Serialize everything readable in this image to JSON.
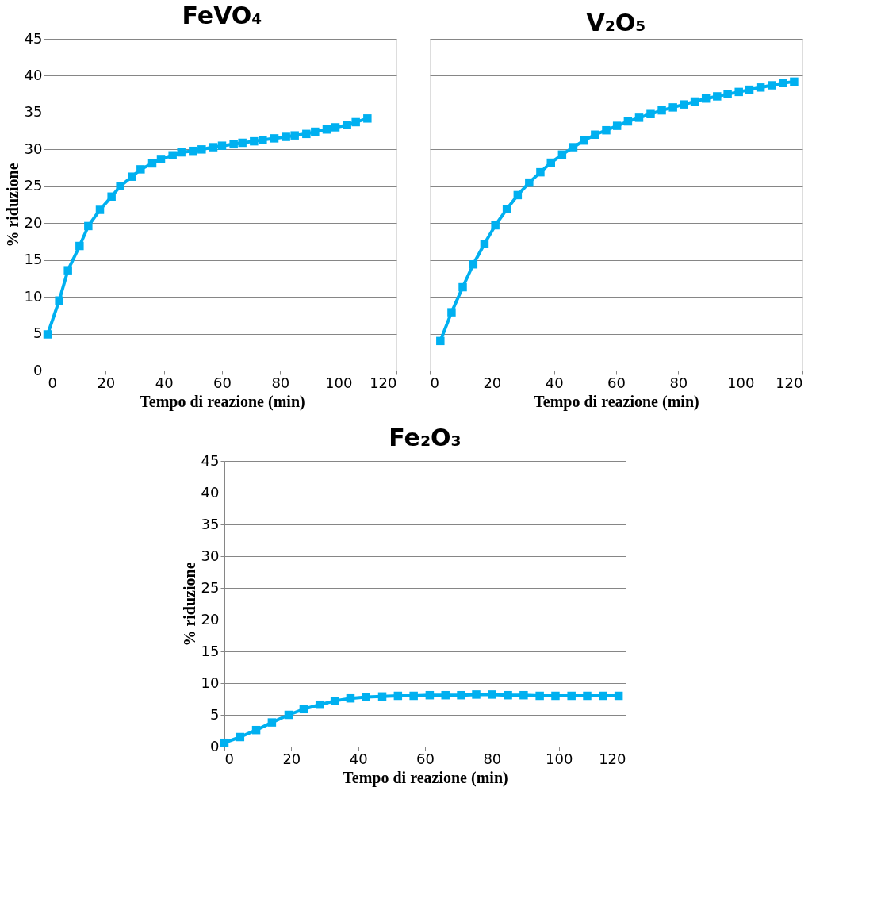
{
  "chart_data": [
    {
      "type": "line",
      "title": "FeVO₄",
      "xlabel": "Tempo di reazione (min)",
      "ylabel": "% riduzione",
      "xlim": [
        0,
        120
      ],
      "xticks": [
        0,
        20,
        40,
        60,
        80,
        100,
        120
      ],
      "ylim": [
        0,
        45
      ],
      "yticks": [
        0,
        5,
        10,
        15,
        20,
        25,
        30,
        35,
        40,
        45
      ],
      "grid": "y",
      "marker": "square",
      "x": [
        0,
        4,
        7,
        11,
        14,
        18,
        22,
        25,
        29,
        32,
        36,
        39,
        43,
        46,
        50,
        53,
        57,
        60,
        64,
        67,
        71,
        74,
        78,
        82,
        85,
        89,
        92,
        96,
        99,
        103,
        106,
        110
      ],
      "series": [
        {
          "color": "#00b0f0",
          "values": [
            4.9,
            9.5,
            13.6,
            16.9,
            19.6,
            21.8,
            23.6,
            25.0,
            26.3,
            27.3,
            28.1,
            28.7,
            29.2,
            29.6,
            29.8,
            30.0,
            30.3,
            30.5,
            30.7,
            30.9,
            31.1,
            31.3,
            31.5,
            31.7,
            31.9,
            32.1,
            32.4,
            32.7,
            33.0,
            33.3,
            33.7,
            34.2
          ]
        }
      ]
    },
    {
      "type": "line",
      "title": "V₂O₅",
      "xlabel": "Tempo di reazione (min)",
      "xlim": [
        0,
        120
      ],
      "xticks": [
        0,
        20,
        40,
        60,
        80,
        100,
        120
      ],
      "ylim": [
        0,
        45
      ],
      "yticks": [
        0,
        5,
        10,
        15,
        20,
        25,
        30,
        35,
        40,
        45
      ],
      "grid": "y",
      "marker": "square",
      "tick_labels": "x",
      "x": [
        3.4,
        7.0,
        10.6,
        14.0,
        17.6,
        21.1,
        24.8,
        28.3,
        32.0,
        35.6,
        39.0,
        42.6,
        46.2,
        49.6,
        53.2,
        56.8,
        60.3,
        63.8,
        67.4,
        71.1,
        74.7,
        78.3,
        81.8,
        85.3,
        88.9,
        92.5,
        95.9,
        99.5,
        102.9,
        106.5,
        110.1,
        113.7,
        117.3
      ],
      "series": [
        {
          "color": "#00b0f0",
          "values": [
            4.0,
            7.9,
            11.3,
            14.4,
            17.2,
            19.7,
            21.9,
            23.8,
            25.5,
            26.9,
            28.2,
            29.3,
            30.3,
            31.2,
            32.0,
            32.6,
            33.2,
            33.8,
            34.3,
            34.8,
            35.3,
            35.7,
            36.1,
            36.5,
            36.9,
            37.2,
            37.5,
            37.8,
            38.1,
            38.4,
            38.7,
            39.0,
            39.2
          ]
        }
      ]
    },
    {
      "type": "line",
      "title": "Fe₂O₃",
      "xlabel": "Tempo di reazione (min)",
      "ylabel": "% riduzione",
      "xlim": [
        0,
        120
      ],
      "xticks": [
        0,
        20,
        40,
        60,
        80,
        100,
        120
      ],
      "ylim": [
        0,
        45
      ],
      "yticks": [
        0,
        5,
        10,
        15,
        20,
        25,
        30,
        35,
        40,
        45
      ],
      "grid": "y",
      "marker": "square",
      "x": [
        0,
        4.7,
        9.5,
        14.2,
        19.2,
        23.7,
        28.5,
        33.0,
        37.7,
        42.4,
        47.2,
        51.9,
        56.6,
        61.4,
        66.1,
        70.8,
        75.3,
        80.1,
        84.8,
        89.5,
        94.3,
        99.0,
        103.8,
        108.5,
        113.2,
        117.9
      ],
      "series": [
        {
          "color": "#00b0f0",
          "values": [
            0.6,
            1.5,
            2.6,
            3.8,
            5.0,
            5.9,
            6.6,
            7.2,
            7.6,
            7.8,
            7.9,
            8.0,
            8.0,
            8.1,
            8.1,
            8.1,
            8.2,
            8.2,
            8.1,
            8.1,
            8.0,
            8.0,
            8.0,
            8.0,
            8.0,
            8.0
          ]
        }
      ]
    }
  ]
}
